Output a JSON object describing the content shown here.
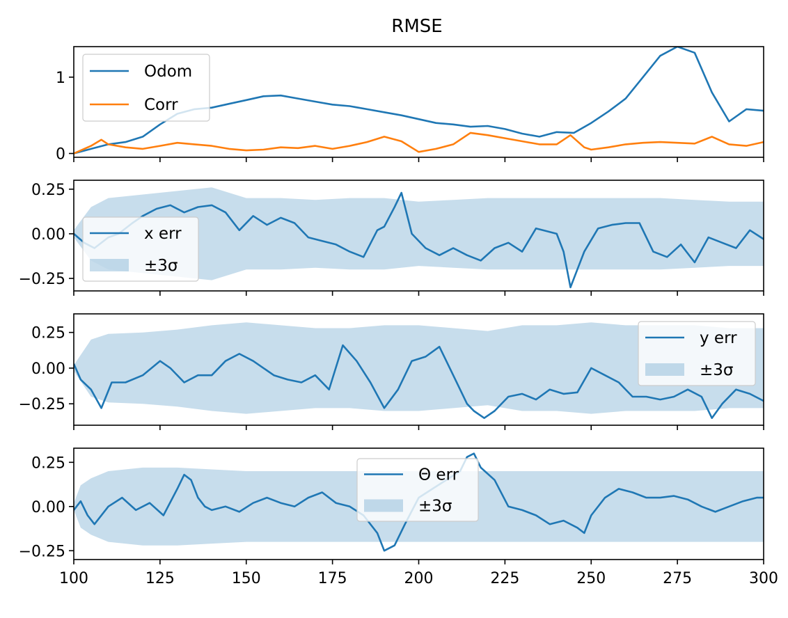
{
  "chart_data": [
    {
      "type": "line",
      "title": "RMSE",
      "xlim": [
        100,
        300
      ],
      "ylim": [
        -0.05,
        1.4
      ],
      "yticks": [
        0,
        1
      ],
      "ytick_labels": [
        "0",
        "1"
      ],
      "grid": false,
      "legend": {
        "position": "upper-left",
        "entries": [
          "Odom",
          "Corr"
        ]
      },
      "series": [
        {
          "name": "Odom",
          "color": "#1f77b4",
          "x": [
            100,
            105,
            110,
            115,
            120,
            125,
            130,
            135,
            140,
            145,
            150,
            155,
            160,
            165,
            170,
            175,
            180,
            185,
            190,
            195,
            200,
            205,
            210,
            215,
            220,
            225,
            230,
            235,
            240,
            245,
            250,
            255,
            260,
            265,
            270,
            275,
            280,
            285,
            290,
            295,
            300
          ],
          "y": [
            0.0,
            0.06,
            0.12,
            0.15,
            0.22,
            0.38,
            0.52,
            0.58,
            0.6,
            0.65,
            0.7,
            0.75,
            0.76,
            0.72,
            0.68,
            0.64,
            0.62,
            0.58,
            0.54,
            0.5,
            0.45,
            0.4,
            0.38,
            0.35,
            0.36,
            0.32,
            0.26,
            0.22,
            0.28,
            0.27,
            0.4,
            0.55,
            0.72,
            1.0,
            1.28,
            1.4,
            1.32,
            0.8,
            0.42,
            0.58,
            0.56
          ]
        },
        {
          "name": "Corr",
          "color": "#ff7f0e",
          "x": [
            100,
            105,
            108,
            110,
            115,
            120,
            125,
            130,
            135,
            140,
            145,
            150,
            155,
            160,
            165,
            170,
            175,
            180,
            185,
            190,
            195,
            200,
            205,
            210,
            215,
            220,
            225,
            230,
            235,
            240,
            244,
            248,
            250,
            255,
            260,
            265,
            270,
            275,
            280,
            285,
            290,
            295,
            300
          ],
          "y": [
            0.0,
            0.1,
            0.18,
            0.12,
            0.08,
            0.06,
            0.1,
            0.14,
            0.12,
            0.1,
            0.06,
            0.04,
            0.05,
            0.08,
            0.07,
            0.1,
            0.06,
            0.1,
            0.15,
            0.22,
            0.16,
            0.02,
            0.06,
            0.12,
            0.27,
            0.24,
            0.2,
            0.16,
            0.12,
            0.12,
            0.24,
            0.08,
            0.05,
            0.08,
            0.12,
            0.14,
            0.15,
            0.14,
            0.13,
            0.22,
            0.12,
            0.1,
            0.15
          ]
        }
      ]
    },
    {
      "type": "line",
      "xlim": [
        100,
        300
      ],
      "ylim": [
        -0.32,
        0.3
      ],
      "yticks": [
        0.25,
        0.0,
        -0.25
      ],
      "ytick_labels": [
        "0.25",
        "0.00",
        "−0.25"
      ],
      "grid": false,
      "legend": {
        "position": "center-left",
        "entries": [
          "x err",
          "±3σ"
        ]
      },
      "series": [
        {
          "name": "x err",
          "color": "#1f77b4",
          "x": [
            100,
            103,
            106,
            110,
            113,
            117,
            120,
            124,
            128,
            132,
            136,
            140,
            144,
            148,
            152,
            156,
            160,
            164,
            168,
            172,
            176,
            180,
            184,
            188,
            190,
            193,
            195,
            198,
            202,
            206,
            210,
            214,
            218,
            222,
            226,
            230,
            234,
            236,
            240,
            242,
            244,
            246,
            248,
            252,
            256,
            260,
            264,
            268,
            272,
            276,
            280,
            284,
            288,
            292,
            296,
            300
          ],
          "y": [
            0.0,
            -0.05,
            -0.08,
            -0.02,
            0.0,
            0.06,
            0.1,
            0.14,
            0.16,
            0.12,
            0.15,
            0.16,
            0.12,
            0.02,
            0.1,
            0.05,
            0.09,
            0.06,
            -0.02,
            -0.04,
            -0.06,
            -0.1,
            -0.13,
            0.02,
            0.04,
            0.15,
            0.23,
            0.0,
            -0.08,
            -0.12,
            -0.08,
            -0.12,
            -0.15,
            -0.08,
            -0.05,
            -0.1,
            0.03,
            0.02,
            0.0,
            -0.1,
            -0.3,
            -0.2,
            -0.1,
            0.03,
            0.05,
            0.06,
            0.06,
            -0.1,
            -0.13,
            -0.06,
            -0.16,
            -0.02,
            -0.05,
            -0.08,
            0.02,
            -0.03
          ]
        },
        {
          "name": "±3σ",
          "type": "band",
          "color": "#1f77b4",
          "alpha": 0.25,
          "x": [
            100,
            105,
            110,
            120,
            130,
            140,
            150,
            160,
            170,
            180,
            190,
            200,
            210,
            220,
            230,
            240,
            250,
            260,
            270,
            280,
            290,
            300
          ],
          "upper": [
            0.02,
            0.15,
            0.2,
            0.22,
            0.24,
            0.26,
            0.2,
            0.2,
            0.19,
            0.2,
            0.2,
            0.18,
            0.19,
            0.2,
            0.2,
            0.2,
            0.2,
            0.2,
            0.2,
            0.19,
            0.18,
            0.18
          ],
          "lower": [
            -0.02,
            -0.15,
            -0.2,
            -0.22,
            -0.24,
            -0.26,
            -0.2,
            -0.2,
            -0.19,
            -0.2,
            -0.2,
            -0.18,
            -0.19,
            -0.2,
            -0.2,
            -0.2,
            -0.2,
            -0.2,
            -0.2,
            -0.19,
            -0.18,
            -0.18
          ]
        }
      ]
    },
    {
      "type": "line",
      "xlim": [
        100,
        300
      ],
      "ylim": [
        -0.4,
        0.38
      ],
      "yticks": [
        0.25,
        0.0,
        -0.25
      ],
      "ytick_labels": [
        "0.25",
        "0.00",
        "−0.25"
      ],
      "grid": false,
      "legend": {
        "position": "upper-right",
        "entries": [
          "y err",
          "±3σ"
        ]
      },
      "series": [
        {
          "name": "y err",
          "color": "#1f77b4",
          "x": [
            100,
            102,
            105,
            108,
            111,
            115,
            120,
            125,
            128,
            132,
            136,
            140,
            144,
            148,
            152,
            155,
            158,
            162,
            166,
            170,
            174,
            178,
            182,
            186,
            190,
            194,
            198,
            202,
            206,
            210,
            214,
            216,
            219,
            222,
            226,
            230,
            234,
            238,
            242,
            246,
            250,
            254,
            258,
            262,
            266,
            270,
            274,
            278,
            282,
            285,
            288,
            292,
            296,
            300
          ],
          "y": [
            0.03,
            -0.08,
            -0.15,
            -0.28,
            -0.1,
            -0.1,
            -0.05,
            0.05,
            0.0,
            -0.1,
            -0.05,
            -0.05,
            0.05,
            0.1,
            0.05,
            0.0,
            -0.05,
            -0.08,
            -0.1,
            -0.05,
            -0.15,
            0.16,
            0.05,
            -0.1,
            -0.28,
            -0.15,
            0.05,
            0.08,
            0.15,
            -0.05,
            -0.25,
            -0.3,
            -0.35,
            -0.3,
            -0.2,
            -0.18,
            -0.22,
            -0.15,
            -0.18,
            -0.17,
            0.0,
            -0.05,
            -0.1,
            -0.2,
            -0.2,
            -0.22,
            -0.2,
            -0.15,
            -0.2,
            -0.35,
            -0.25,
            -0.15,
            -0.18,
            -0.23
          ]
        },
        {
          "name": "±3σ",
          "type": "band",
          "color": "#1f77b4",
          "alpha": 0.25,
          "x": [
            100,
            105,
            110,
            120,
            130,
            140,
            150,
            160,
            170,
            180,
            190,
            200,
            210,
            220,
            230,
            240,
            250,
            260,
            270,
            280,
            290,
            300
          ],
          "upper": [
            0.02,
            0.2,
            0.24,
            0.25,
            0.27,
            0.3,
            0.32,
            0.3,
            0.28,
            0.28,
            0.3,
            0.3,
            0.28,
            0.26,
            0.3,
            0.3,
            0.32,
            0.3,
            0.3,
            0.3,
            0.28,
            0.28
          ],
          "lower": [
            -0.02,
            -0.2,
            -0.24,
            -0.25,
            -0.27,
            -0.3,
            -0.32,
            -0.3,
            -0.28,
            -0.28,
            -0.3,
            -0.3,
            -0.28,
            -0.26,
            -0.3,
            -0.3,
            -0.32,
            -0.3,
            -0.3,
            -0.3,
            -0.28,
            -0.28
          ]
        }
      ]
    },
    {
      "type": "line",
      "xlim": [
        100,
        300
      ],
      "ylim": [
        -0.3,
        0.33
      ],
      "yticks": [
        0.25,
        0.0,
        -0.25
      ],
      "ytick_labels": [
        "0.25",
        "0.00",
        "−0.25"
      ],
      "xticks": [
        100,
        125,
        150,
        175,
        200,
        225,
        250,
        275,
        300
      ],
      "xtick_labels": [
        "100",
        "125",
        "150",
        "175",
        "200",
        "225",
        "250",
        "275",
        "300"
      ],
      "grid": false,
      "legend": {
        "position": "upper-center",
        "entries": [
          "Θ err",
          "±3σ"
        ]
      },
      "series": [
        {
          "name": "Θ err",
          "color": "#1f77b4",
          "x": [
            100,
            102,
            104,
            106,
            110,
            114,
            118,
            122,
            126,
            130,
            132,
            134,
            136,
            138,
            140,
            144,
            148,
            152,
            156,
            160,
            164,
            168,
            172,
            176,
            180,
            184,
            188,
            190,
            193,
            196,
            200,
            204,
            208,
            212,
            214,
            216,
            218,
            222,
            226,
            230,
            234,
            238,
            242,
            246,
            248,
            250,
            254,
            258,
            262,
            266,
            270,
            274,
            278,
            282,
            286,
            290,
            294,
            298,
            300
          ],
          "y": [
            -0.02,
            0.03,
            -0.05,
            -0.1,
            0.0,
            0.05,
            -0.02,
            0.02,
            -0.05,
            0.1,
            0.18,
            0.15,
            0.05,
            0.0,
            -0.02,
            0.0,
            -0.03,
            0.02,
            0.05,
            0.02,
            0.0,
            0.05,
            0.08,
            0.02,
            0.0,
            -0.05,
            -0.15,
            -0.25,
            -0.22,
            -0.1,
            0.05,
            0.1,
            0.15,
            0.2,
            0.28,
            0.3,
            0.22,
            0.15,
            0.0,
            -0.02,
            -0.05,
            -0.1,
            -0.08,
            -0.12,
            -0.15,
            -0.05,
            0.05,
            0.1,
            0.08,
            0.05,
            0.05,
            0.06,
            0.04,
            0.0,
            -0.03,
            0.0,
            0.03,
            0.05,
            0.05
          ]
        },
        {
          "name": "±3σ",
          "type": "band",
          "color": "#1f77b4",
          "alpha": 0.25,
          "x": [
            100,
            102,
            105,
            110,
            120,
            130,
            140,
            150,
            160,
            170,
            180,
            190,
            200,
            210,
            220,
            230,
            240,
            250,
            260,
            270,
            280,
            290,
            300
          ],
          "upper": [
            0.02,
            0.12,
            0.16,
            0.2,
            0.22,
            0.22,
            0.21,
            0.2,
            0.2,
            0.2,
            0.2,
            0.2,
            0.2,
            0.2,
            0.2,
            0.2,
            0.2,
            0.2,
            0.2,
            0.2,
            0.2,
            0.2,
            0.2
          ],
          "lower": [
            -0.02,
            -0.12,
            -0.16,
            -0.2,
            -0.22,
            -0.22,
            -0.21,
            -0.2,
            -0.2,
            -0.2,
            -0.2,
            -0.2,
            -0.2,
            -0.2,
            -0.2,
            -0.2,
            -0.2,
            -0.2,
            -0.2,
            -0.2,
            -0.2,
            -0.2,
            -0.2
          ]
        }
      ]
    }
  ]
}
